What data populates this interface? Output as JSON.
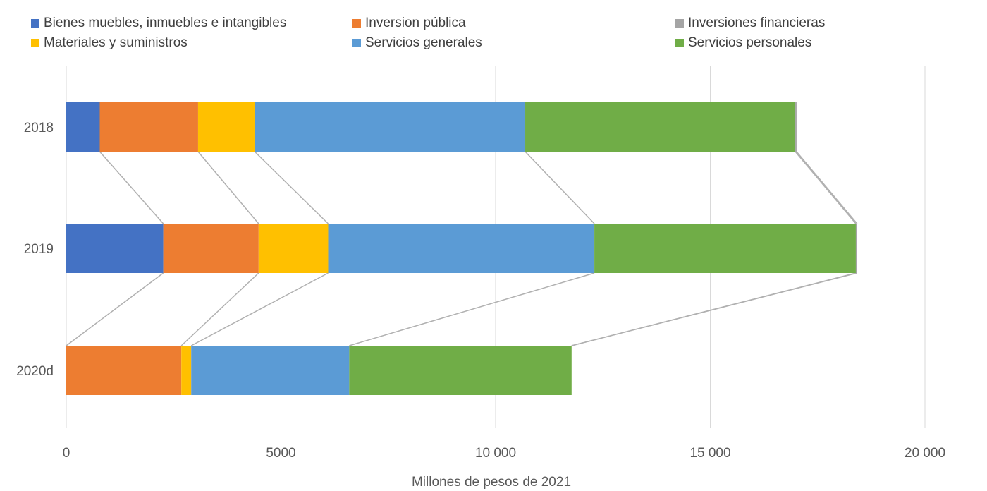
{
  "chart_data": {
    "type": "bar",
    "orientation": "horizontal",
    "stacked": true,
    "series_lines": true,
    "categories": [
      "2018",
      "2019",
      "2020d"
    ],
    "series": [
      {
        "name": "Bienes muebles, inmuebles e intangibles",
        "color": "#4472C4",
        "values": [
          780,
          2260,
          0
        ]
      },
      {
        "name": "Inversion pública",
        "color": "#ED7D31",
        "values": [
          2290,
          2220,
          2680
        ]
      },
      {
        "name": "Materiales y suministros",
        "color": "#FFC000",
        "values": [
          1320,
          1620,
          230
        ]
      },
      {
        "name": "Servicios generales",
        "color": "#5B9BD5",
        "values": [
          6300,
          6200,
          3680
        ]
      },
      {
        "name": "Servicios personales",
        "color": "#70AD47",
        "values": [
          6290,
          6090,
          5180
        ]
      },
      {
        "name": "Inversiones financieras",
        "color": "#A5A5A5",
        "values": [
          30,
          30,
          0
        ]
      }
    ],
    "x_ticks": [
      0,
      5000,
      10000,
      15000,
      20000
    ],
    "x_tick_labels": [
      "0",
      "5000",
      "10 000",
      "15 000",
      "20 000"
    ],
    "xlim": [
      0,
      20000
    ],
    "xlabel": "Millones de pesos de 2021",
    "ylabel": "",
    "title": "",
    "grid": true,
    "legend_position": "top"
  }
}
